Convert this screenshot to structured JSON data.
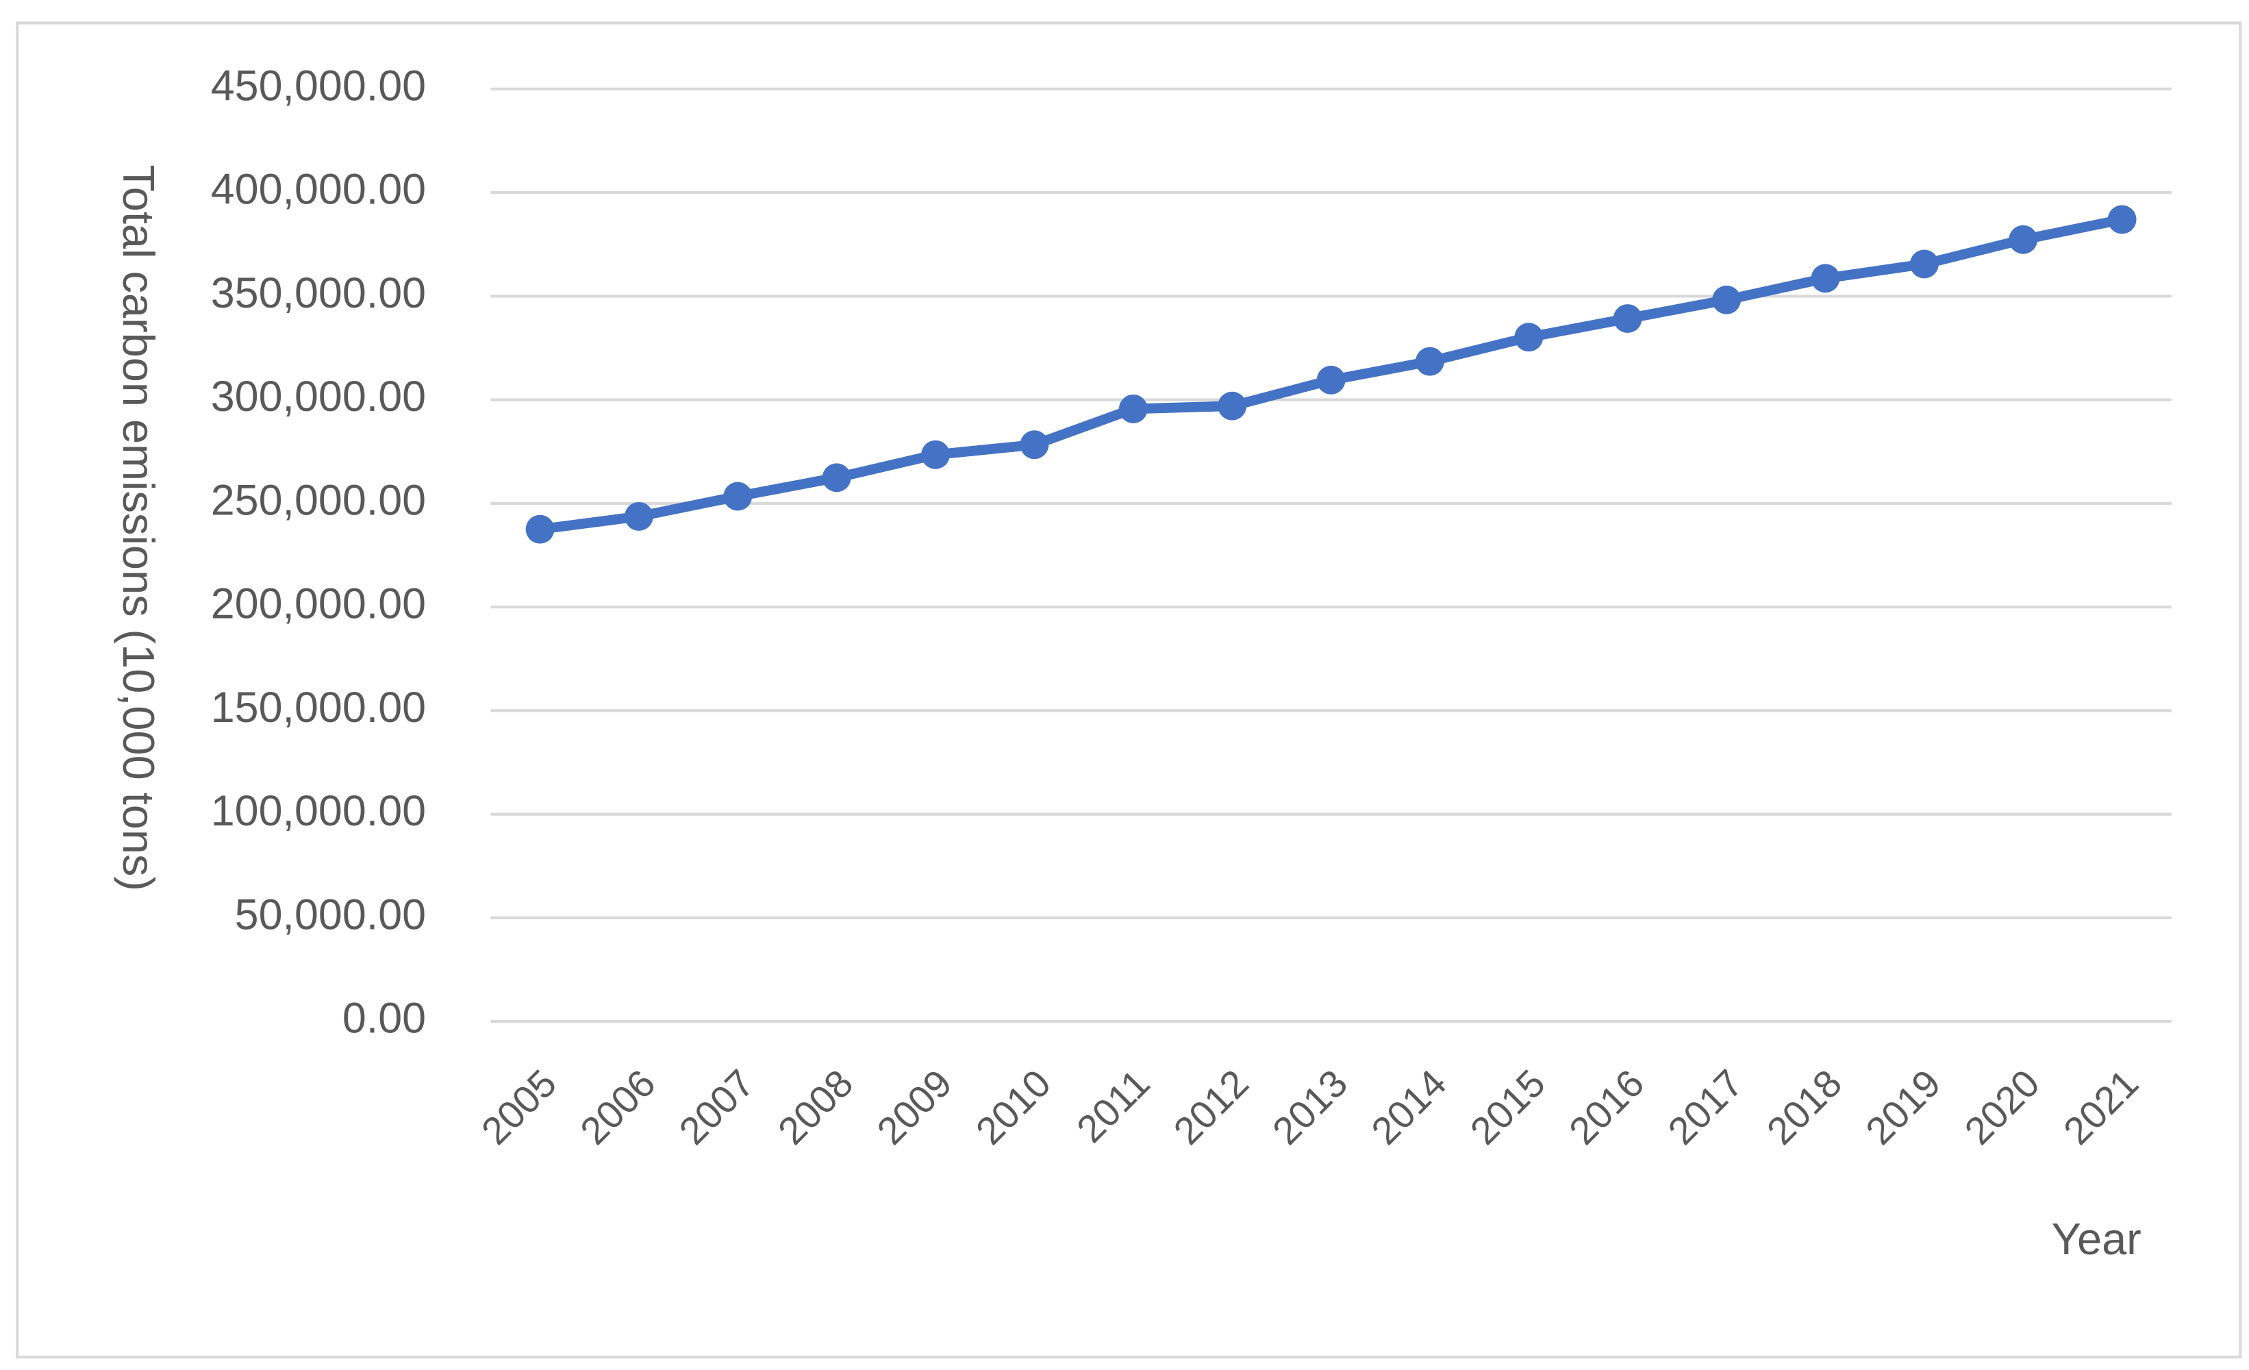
{
  "chart_data": {
    "type": "line",
    "y_axis_title": "Total carbon emissions (10,000 tons)",
    "x_axis_title": "Year",
    "categories": [
      "2005",
      "2006",
      "2007",
      "2008",
      "2009",
      "2010",
      "2011",
      "2012",
      "2013",
      "2014",
      "2015",
      "2016",
      "2017",
      "2018",
      "2019",
      "2020",
      "2021"
    ],
    "series": [
      {
        "name": "Total carbon emissions",
        "color": "#4472c4",
        "values": [
          237500,
          243700,
          253400,
          262400,
          273500,
          278300,
          295600,
          297000,
          309500,
          318500,
          330200,
          339200,
          348200,
          358600,
          365500,
          377300,
          387000
        ]
      }
    ],
    "ylim": [
      0,
      450000
    ],
    "yticks": [
      {
        "value": 0,
        "label": "0.00"
      },
      {
        "value": 50000,
        "label": "50,000.00"
      },
      {
        "value": 100000,
        "label": "100,000.00"
      },
      {
        "value": 150000,
        "label": "150,000.00"
      },
      {
        "value": 200000,
        "label": "200,000.00"
      },
      {
        "value": 250000,
        "label": "250,000.00"
      },
      {
        "value": 300000,
        "label": "300,000.00"
      },
      {
        "value": 350000,
        "label": "350,000.00"
      },
      {
        "value": 400000,
        "label": "400,000.00"
      },
      {
        "value": 450000,
        "label": "450,000.00"
      }
    ],
    "grid": true
  }
}
